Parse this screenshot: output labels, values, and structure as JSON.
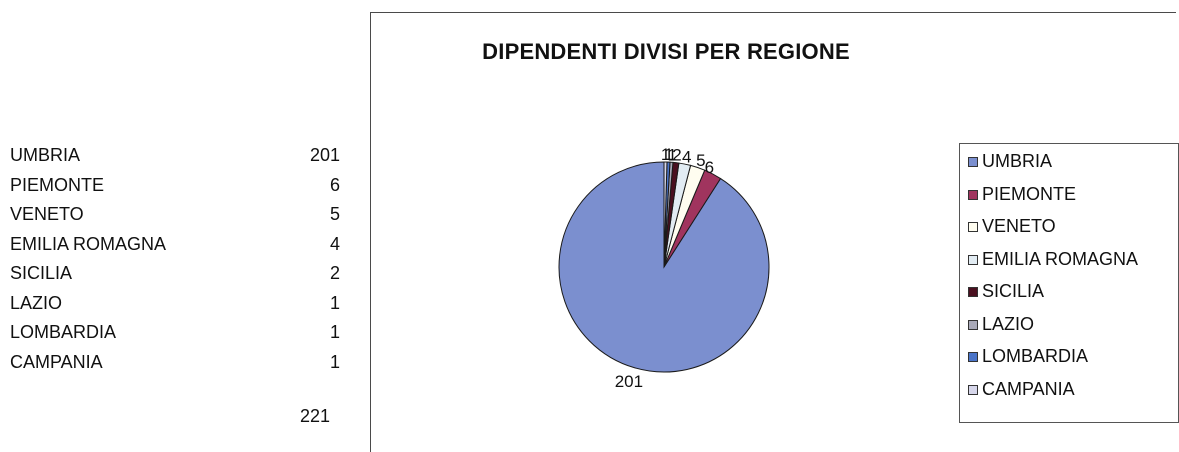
{
  "table": {
    "rows": [
      {
        "name": "UMBRIA",
        "value": "201"
      },
      {
        "name": "PIEMONTE",
        "value": "6"
      },
      {
        "name": "VENETO",
        "value": "5"
      },
      {
        "name": "EMILIA ROMAGNA",
        "value": "4"
      },
      {
        "name": "SICILIA",
        "value": "2"
      },
      {
        "name": "LAZIO",
        "value": "1"
      },
      {
        "name": "LOMBARDIA",
        "value": "1"
      },
      {
        "name": "CAMPANIA",
        "value": "1"
      }
    ],
    "total": "221"
  },
  "chart_data": {
    "type": "pie",
    "title": "DIPENDENTI DIVISI PER REGIONE",
    "categories": [
      "UMBRIA",
      "PIEMONTE",
      "VENETO",
      "EMILIA ROMAGNA",
      "SICILIA",
      "LAZIO",
      "LOMBARDIA",
      "CAMPANIA"
    ],
    "values": [
      201,
      6,
      5,
      4,
      2,
      1,
      1,
      1
    ],
    "colors": [
      "#7b8fcf",
      "#a0345e",
      "#fffdf0",
      "#e2ecf3",
      "#4a1020",
      "#a9a9b8",
      "#4a74c8",
      "#d6d6ea"
    ],
    "data_labels": [
      "201",
      "6",
      "5",
      "4",
      "2",
      "1",
      "1",
      "1"
    ],
    "legend_position": "right"
  }
}
